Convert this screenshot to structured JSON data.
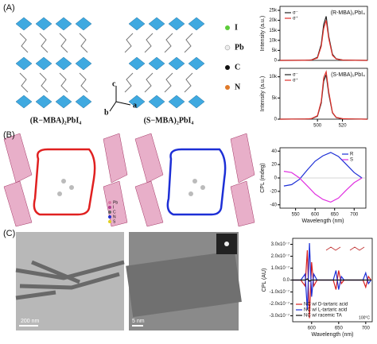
{
  "panels": [
    "(A)",
    "(B)",
    "(C)"
  ],
  "panel_a": {
    "atoms": [
      "I",
      "Pb",
      "C",
      "N"
    ],
    "axes": [
      "c",
      "a",
      "b"
    ],
    "captions": [
      "(R−MBA)₂PbI₄",
      "(S−MBA)₂PbI₄"
    ]
  },
  "panel_b": {
    "atoms": [
      "Pb",
      "I",
      "C",
      "N",
      "S"
    ]
  },
  "panel_c": {
    "scale_bars": [
      "200 nm",
      "5 nm"
    ]
  },
  "chart_data": [
    {
      "type": "line",
      "title": "(R-MBA)₂PbI₄",
      "y_label": "Intensity (a.u.)",
      "legend": "upper left",
      "x": [
        470,
        490,
        495,
        500,
        503,
        505,
        507,
        509,
        512,
        515,
        520,
        530,
        540
      ],
      "xlim": [
        470,
        540
      ],
      "ylim": [
        0,
        27000
      ],
      "yticks": [
        0,
        {
          "value": 5000,
          "label": "5k"
        },
        {
          "value": 10000,
          "label": "10k"
        },
        {
          "value": 15000,
          "label": "15k"
        },
        {
          "value": 20000,
          "label": "20k"
        },
        {
          "value": 25000,
          "label": "25k"
        }
      ],
      "series": [
        {
          "name": "σ⁻",
          "color": "#222222",
          "values": [
            0,
            50,
            200,
            1500,
            8000,
            18000,
            22000,
            12000,
            3000,
            800,
            200,
            50,
            0
          ]
        },
        {
          "name": "σ⁺",
          "color": "#e0302a",
          "values": [
            0,
            40,
            150,
            1200,
            7000,
            16000,
            20000,
            11000,
            2500,
            700,
            150,
            40,
            0
          ]
        }
      ]
    },
    {
      "type": "line",
      "title": "(S-MBA)₂PbI₄",
      "y_label": "Intensity (a.u.)",
      "x_label": "",
      "legend": "upper left",
      "x": [
        470,
        490,
        495,
        500,
        503,
        505,
        507,
        509,
        512,
        515,
        520,
        530,
        540
      ],
      "xlim": [
        470,
        540
      ],
      "xticks": [
        500,
        520
      ],
      "ylim": [
        0,
        12000
      ],
      "yticks": [
        0,
        {
          "value": 5000,
          "label": "5k"
        },
        {
          "value": 10000,
          "label": "10k"
        }
      ],
      "series": [
        {
          "name": "σ⁻",
          "color": "#222222",
          "values": [
            0,
            30,
            100,
            700,
            3800,
            9000,
            10500,
            6000,
            1500,
            400,
            100,
            30,
            0
          ]
        },
        {
          "name": "σ⁺",
          "color": "#e0302a",
          "values": [
            0,
            30,
            120,
            800,
            4200,
            9800,
            11200,
            6500,
            1600,
            420,
            110,
            30,
            0
          ]
        }
      ]
    },
    {
      "type": "line",
      "y_label": "CPL (mdeg)",
      "x_label": "Wavelength (nm)",
      "legend": "upper right",
      "x": [
        520,
        540,
        560,
        580,
        600,
        620,
        640,
        660,
        680,
        700,
        720
      ],
      "xlim": [
        510,
        730
      ],
      "xticks": [
        550,
        600,
        650,
        700
      ],
      "ylim": [
        -45,
        45
      ],
      "yticks": [
        -40,
        -20,
        0,
        20,
        40
      ],
      "series": [
        {
          "name": "R",
          "color": "#1d2fd6",
          "values": [
            -12,
            -10,
            -2,
            12,
            25,
            33,
            38,
            32,
            20,
            8,
            0
          ]
        },
        {
          "name": "S",
          "color": "#e030e0",
          "values": [
            10,
            8,
            0,
            -12,
            -24,
            -32,
            -36,
            -30,
            -18,
            -7,
            0
          ]
        }
      ]
    },
    {
      "type": "line",
      "y_label": "CPL (AU)",
      "x_label": "Wavelength (nm)",
      "legend": "lower left",
      "annotation": "100°C",
      "x": [
        565,
        580,
        588,
        592,
        596,
        600,
        604,
        610,
        620,
        640,
        645,
        650,
        655,
        660,
        680,
        695,
        700,
        705,
        710
      ],
      "xlim": [
        565,
        712
      ],
      "xticks": [
        600,
        650,
        700
      ],
      "ylim": [
        -3.5e-07,
        3.5e-07
      ],
      "yticks": [
        {
          "value": -3e-07,
          "label": "-3.0x10⁻⁷"
        },
        {
          "value": -2e-07,
          "label": "-2.0x10⁻⁷"
        },
        {
          "value": -1e-07,
          "label": "-1.0x10⁻⁷"
        },
        {
          "value": 0,
          "label": "0.0"
        },
        {
          "value": 1e-07,
          "label": "1.0x10⁻⁷"
        },
        {
          "value": 2e-07,
          "label": "2.0x10⁻⁷"
        },
        {
          "value": 3e-07,
          "label": "3.0x10⁻⁷"
        }
      ],
      "series": [
        {
          "name": "NC w/ D-tartaric acid",
          "color": "#d62020",
          "values": [
            0,
            0,
            -5e-08,
            2.5e-07,
            -3.2e-07,
            1.5e-07,
            -5e-08,
            0,
            0,
            0,
            -8e-08,
            8e-08,
            -3e-08,
            0,
            0,
            0,
            -6e-08,
            3e-08,
            0
          ]
        },
        {
          "name": "NC w/ L-tartaric acid",
          "color": "#1d2fd6",
          "values": [
            0,
            0,
            5e-08,
            -2.5e-07,
            3.1e-07,
            -1.4e-07,
            5e-08,
            0,
            0,
            0,
            8e-08,
            -8e-08,
            3e-08,
            0,
            0,
            0,
            6e-08,
            -3e-08,
            0
          ]
        },
        {
          "name": "NC w/ racemic TA",
          "color": "#111111",
          "values": [
            0,
            0,
            0,
            1e-08,
            -1e-08,
            0,
            0,
            0,
            0,
            0,
            0,
            0,
            0,
            0,
            0,
            0,
            0,
            0,
            0
          ]
        }
      ]
    }
  ]
}
